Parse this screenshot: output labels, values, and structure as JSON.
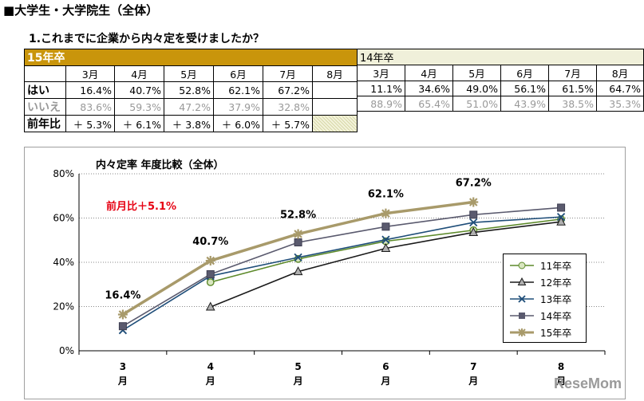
{
  "section_title": "■大学生・大学院生（全体）",
  "question": "1.これまでに企業から内々定を受けましたか？",
  "table_2015": {
    "header": "15年卒",
    "months": [
      "3月",
      "4月",
      "5月",
      "6月",
      "7月",
      "8月"
    ],
    "rows": [
      {
        "label": "はい",
        "values": [
          "16.4%",
          "40.7%",
          "52.8%",
          "62.1%",
          "67.2%",
          ""
        ]
      },
      {
        "label": "いいえ",
        "values": [
          "83.6%",
          "59.3%",
          "47.2%",
          "37.9%",
          "32.8%",
          ""
        ]
      },
      {
        "label": "前年比",
        "values": [
          "＋ 5.3%",
          "＋ 6.1%",
          "＋ 3.8%",
          "＋ 6.0%",
          "＋ 5.7%",
          ""
        ]
      }
    ]
  },
  "table_2014": {
    "header": "14年卒",
    "months": [
      "3月",
      "4月",
      "5月",
      "6月",
      "7月",
      "8月"
    ],
    "rows": [
      {
        "values": [
          "11.1%",
          "34.6%",
          "49.0%",
          "56.1%",
          "61.5%",
          "64.7%"
        ]
      },
      {
        "values": [
          "88.9%",
          "65.4%",
          "51.0%",
          "43.9%",
          "38.5%",
          "35.3%"
        ]
      }
    ]
  },
  "chart_data": {
    "type": "line",
    "title": "内々定率  年度比較（全体）",
    "categories": [
      "3",
      "4",
      "5",
      "6",
      "7",
      "8"
    ],
    "category_suffix": "月",
    "ylim": [
      0,
      80
    ],
    "yticks": [
      "0%",
      "20%",
      "40%",
      "60%",
      "80%"
    ],
    "annotation": "前月比＋5.1%",
    "annotation_color": "#e60012",
    "series": [
      {
        "name": "11年卒",
        "values": [
          null,
          31.0,
          41.5,
          49.5,
          54.5,
          59.5
        ],
        "color": "#5d8a2a",
        "marker": "circle"
      },
      {
        "name": "12年卒",
        "values": [
          null,
          19.8,
          35.8,
          46.3,
          53.5,
          58.3
        ],
        "color": "#1a1a1a",
        "marker": "triangle"
      },
      {
        "name": "13年卒",
        "values": [
          9.3,
          33.8,
          42.2,
          50.2,
          58.0,
          60.5
        ],
        "color": "#1f4e79",
        "marker": "x"
      },
      {
        "name": "14年卒",
        "values": [
          11.1,
          34.6,
          49.0,
          56.1,
          61.5,
          64.7
        ],
        "color": "#5a5a6e",
        "marker": "square"
      },
      {
        "name": "15年卒",
        "values": [
          16.4,
          40.7,
          52.8,
          62.1,
          67.2,
          null
        ],
        "color": "#a89a6a",
        "marker": "star",
        "labels": [
          "16.4%",
          "40.7%",
          "52.8%",
          "62.1%",
          "67.2%",
          ""
        ]
      }
    ]
  },
  "watermark": "ReseMom"
}
